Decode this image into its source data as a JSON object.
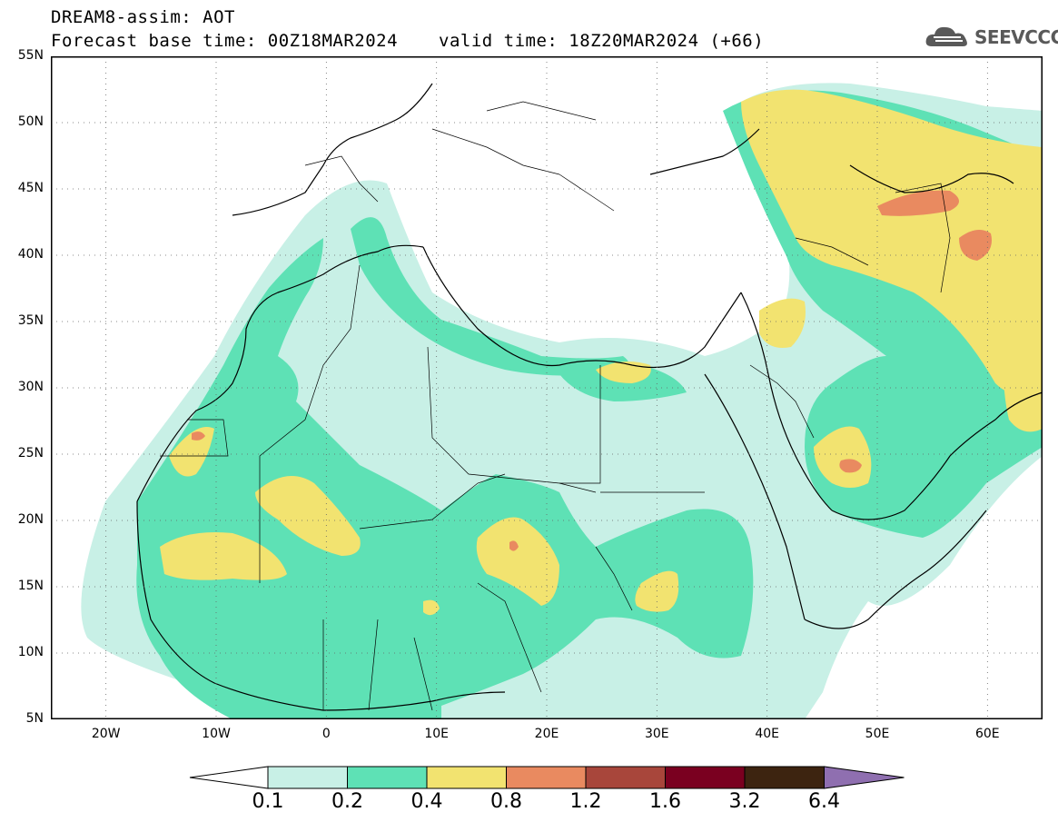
{
  "header": {
    "line1": "DREAM8-assim: AOT",
    "line2_left": "Forecast base time: 00Z18MAR2024",
    "line2_right": "valid time: 18Z20MAR2024 (+66)"
  },
  "logo": {
    "text": "SEEVCCC",
    "icon": "cloud-icon"
  },
  "map": {
    "lon_range": [
      -25,
      65
    ],
    "lat_range": [
      5,
      55
    ],
    "lat_labels": [
      "55N",
      "50N",
      "45N",
      "40N",
      "35N",
      "30N",
      "25N",
      "20N",
      "15N",
      "10N",
      "5N"
    ],
    "lon_labels": [
      "20W",
      "10W",
      "0",
      "10E",
      "20E",
      "30E",
      "40E",
      "50E",
      "60E"
    ]
  },
  "legend": {
    "labels": [
      "0.1",
      "0.2",
      "0.4",
      "0.8",
      "1.2",
      "1.6",
      "3.2",
      "6.4"
    ],
    "colors": [
      "#ffffff",
      "#c8f0e6",
      "#5ee1b5",
      "#f2e370",
      "#e98a60",
      "#a8463b",
      "#7a0020",
      "#3d2410",
      "#8f6fb0"
    ]
  },
  "colors": {
    "aot_01_02": "#c8f0e6",
    "aot_02_04": "#5ee1b5",
    "aot_04_08": "#f2e370",
    "aot_08_12": "#e98a60",
    "aot_12_16": "#a8463b"
  }
}
